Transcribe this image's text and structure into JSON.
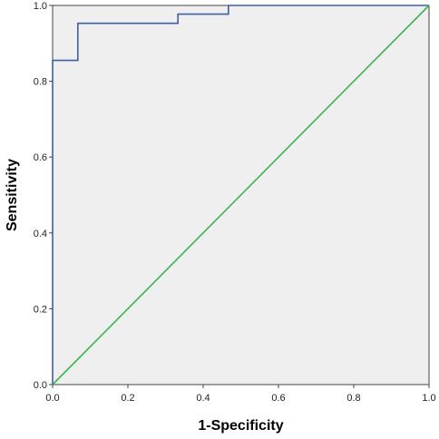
{
  "chart_data": {
    "type": "line",
    "title": "",
    "xlabel": "1-Specificity",
    "ylabel": "Sensitivity",
    "xlim": [
      0.0,
      1.0
    ],
    "ylim": [
      0.0,
      1.0
    ],
    "x_ticks": [
      "0.0",
      "0.2",
      "0.4",
      "0.6",
      "0.8",
      "1.0"
    ],
    "y_ticks": [
      "0.0",
      "0.2",
      "0.4",
      "0.6",
      "0.8",
      "1.0"
    ],
    "grid": false,
    "legend": "none",
    "plot_background": "#efefef",
    "series": [
      {
        "color": "#3f5ea8",
        "step": true,
        "points": [
          [
            0.0,
            0.0
          ],
          [
            0.0,
            0.855
          ],
          [
            0.067,
            0.855
          ],
          [
            0.067,
            0.953
          ],
          [
            0.333,
            0.953
          ],
          [
            0.333,
            0.977
          ],
          [
            0.467,
            0.977
          ],
          [
            0.467,
            1.0
          ],
          [
            1.0,
            1.0
          ]
        ]
      },
      {
        "color": "#3cb44b",
        "step": false,
        "points": [
          [
            0.0,
            0.0
          ],
          [
            1.0,
            1.0
          ]
        ]
      }
    ]
  }
}
